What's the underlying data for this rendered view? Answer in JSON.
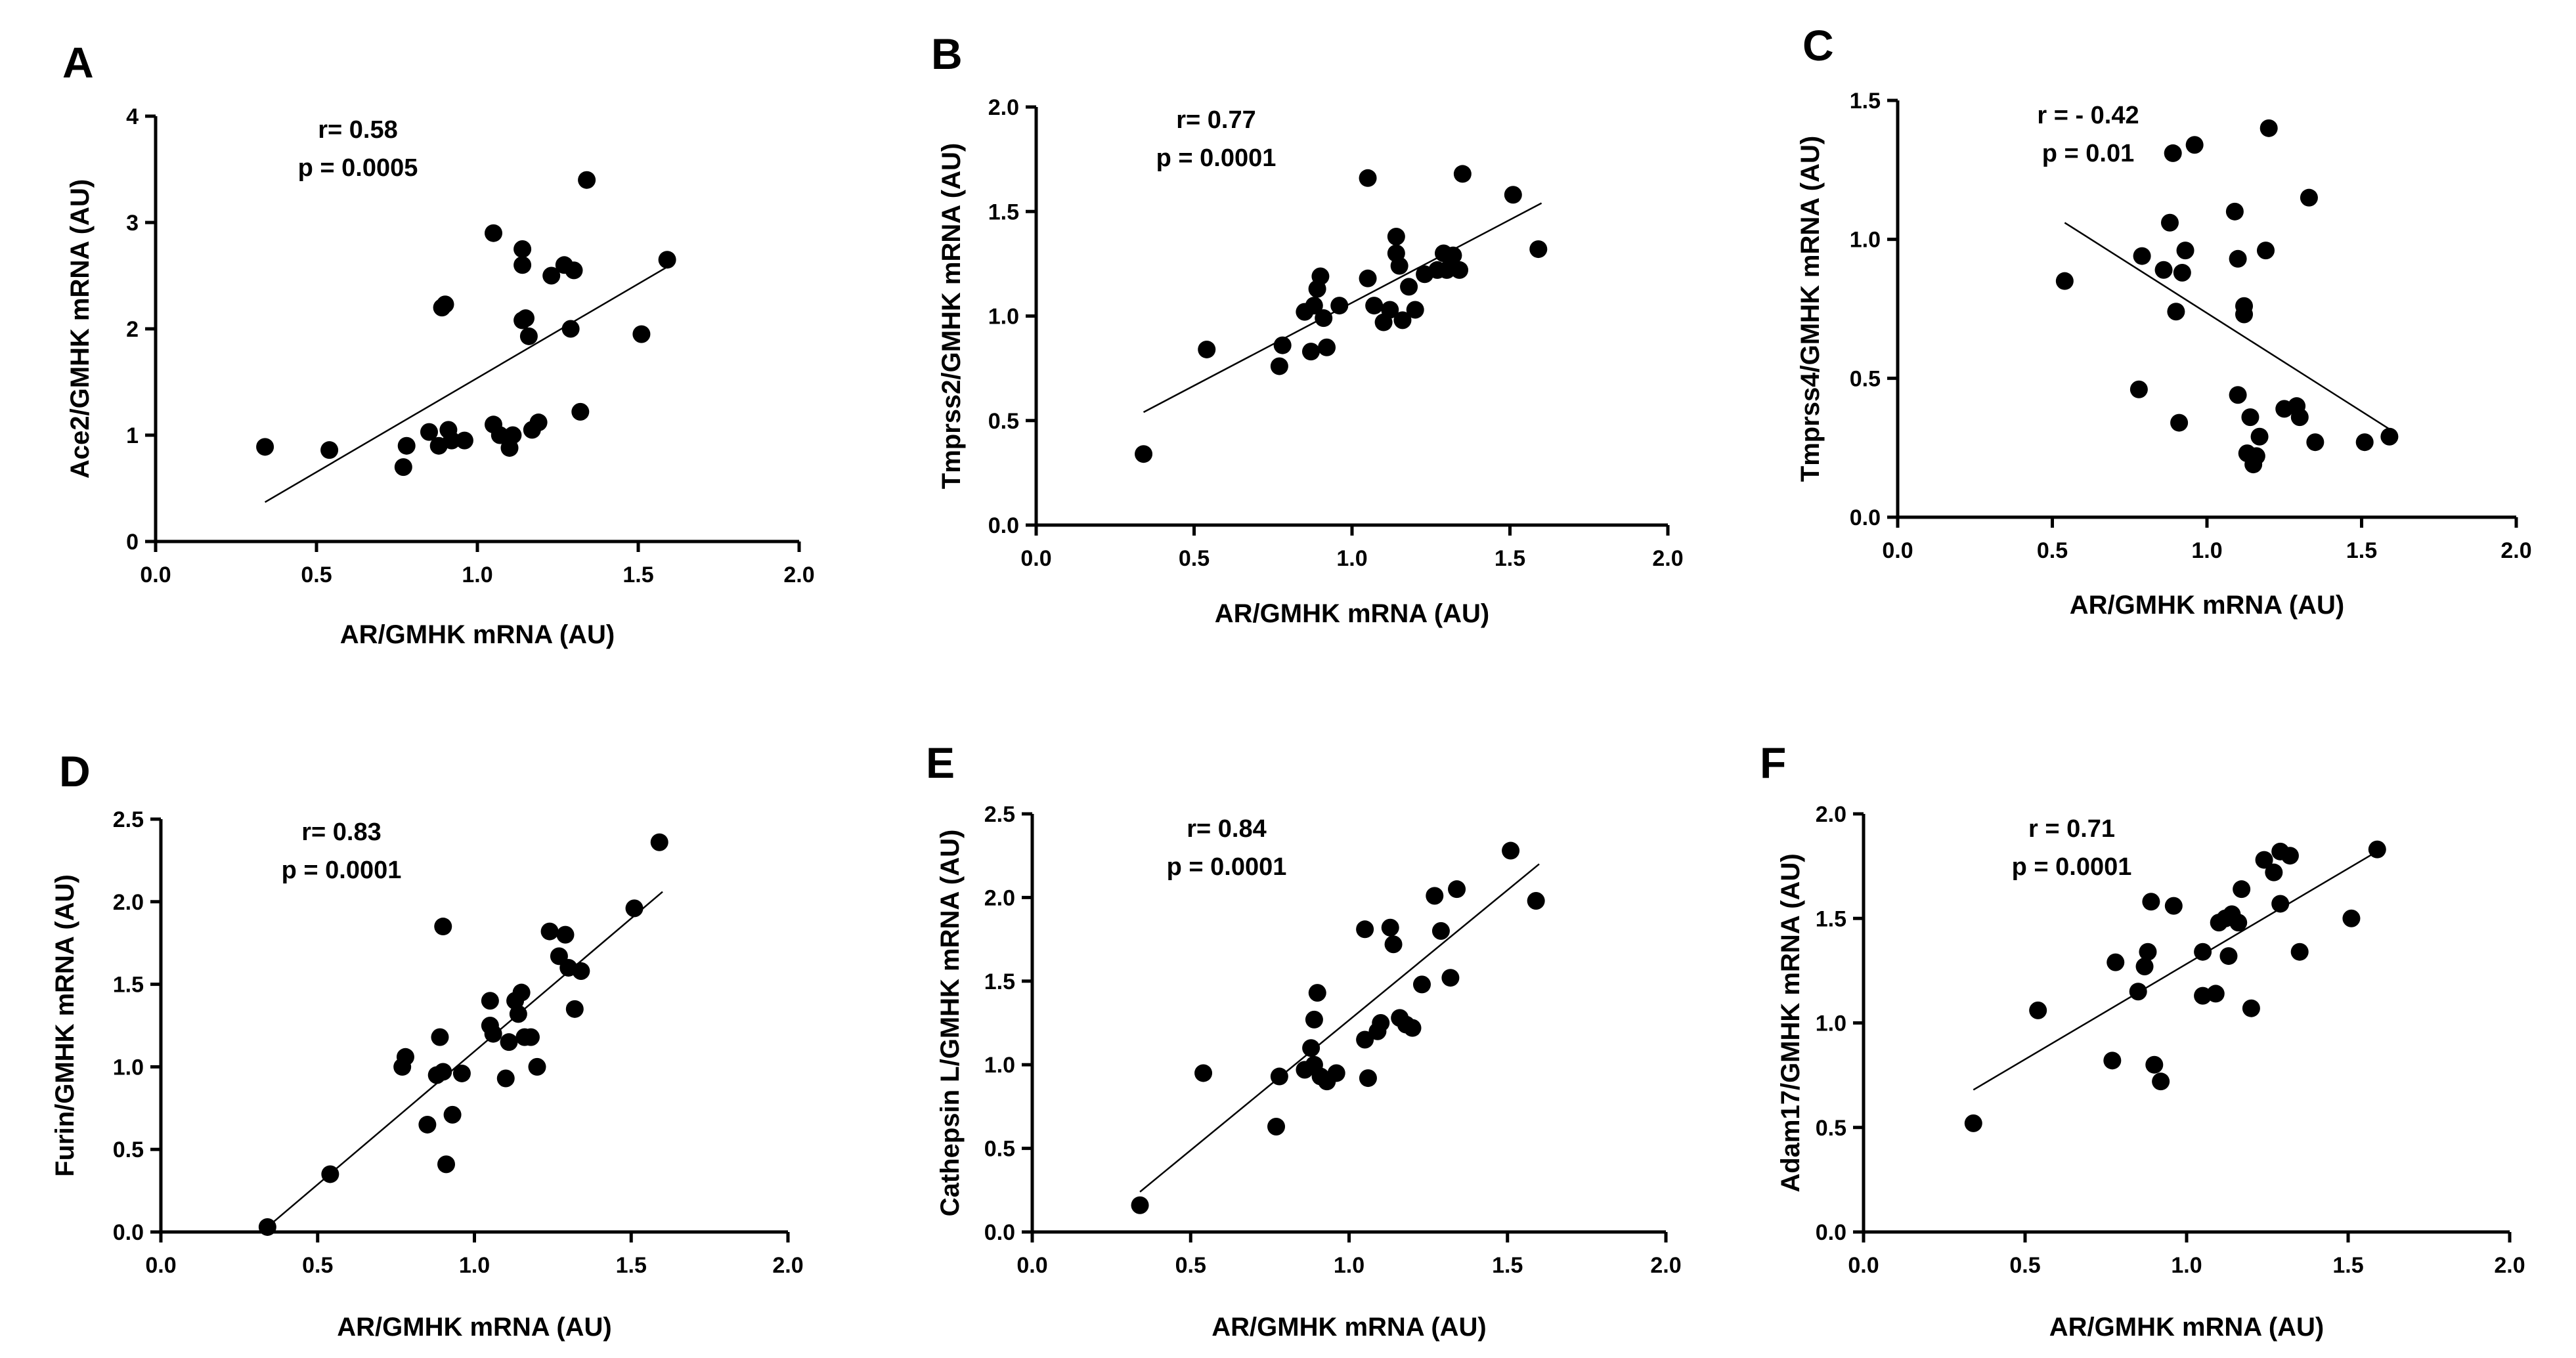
{
  "chart_data": [
    {
      "id": "A",
      "label": "A",
      "type": "scatter",
      "xlabel": "AR/GMHK mRNA (AU)",
      "ylabel": "Ace2/GMHK mRNA (AU)",
      "xlim": [
        0,
        2
      ],
      "ylim": [
        0,
        4
      ],
      "xticks": [
        0.0,
        0.5,
        1.0,
        1.5,
        2.0
      ],
      "xtick_labels": [
        "0.0",
        "0.5",
        "1.0",
        "1.5",
        "2.0"
      ],
      "yticks": [
        0,
        1,
        2,
        3,
        4
      ],
      "ytick_labels": [
        "0",
        "1",
        "2",
        "3",
        "4"
      ],
      "stats": {
        "r": "r= 0.58",
        "p": "p = 0.0005"
      },
      "fit": {
        "x": [
          0.34,
          1.6
        ],
        "y": [
          0.37,
          2.6
        ]
      },
      "points": [
        {
          "x": 0.34,
          "y": 0.89
        },
        {
          "x": 0.54,
          "y": 0.86
        },
        {
          "x": 0.77,
          "y": 0.7
        },
        {
          "x": 0.78,
          "y": 0.9
        },
        {
          "x": 0.85,
          "y": 1.03
        },
        {
          "x": 0.88,
          "y": 0.9
        },
        {
          "x": 0.89,
          "y": 2.2
        },
        {
          "x": 0.9,
          "y": 2.23
        },
        {
          "x": 0.91,
          "y": 1.05
        },
        {
          "x": 0.92,
          "y": 0.95
        },
        {
          "x": 0.96,
          "y": 0.95
        },
        {
          "x": 1.05,
          "y": 2.9
        },
        {
          "x": 1.05,
          "y": 1.1
        },
        {
          "x": 1.07,
          "y": 1.0
        },
        {
          "x": 1.1,
          "y": 0.88
        },
        {
          "x": 1.11,
          "y": 1.0
        },
        {
          "x": 1.14,
          "y": 2.75
        },
        {
          "x": 1.14,
          "y": 2.6
        },
        {
          "x": 1.14,
          "y": 2.08
        },
        {
          "x": 1.15,
          "y": 2.1
        },
        {
          "x": 1.16,
          "y": 1.93
        },
        {
          "x": 1.17,
          "y": 1.05
        },
        {
          "x": 1.19,
          "y": 1.12
        },
        {
          "x": 1.23,
          "y": 2.5
        },
        {
          "x": 1.27,
          "y": 2.6
        },
        {
          "x": 1.29,
          "y": 2.0
        },
        {
          "x": 1.3,
          "y": 2.55
        },
        {
          "x": 1.32,
          "y": 1.22
        },
        {
          "x": 1.34,
          "y": 3.4
        },
        {
          "x": 1.51,
          "y": 1.95
        },
        {
          "x": 1.59,
          "y": 2.65
        }
      ]
    },
    {
      "id": "B",
      "label": "B",
      "type": "scatter",
      "xlabel": "AR/GMHK mRNA (AU)",
      "ylabel": "Tmprss2/GMHK mRNA (AU)",
      "xlim": [
        0,
        2
      ],
      "ylim": [
        0,
        2
      ],
      "xticks": [
        0.0,
        0.5,
        1.0,
        1.5,
        2.0
      ],
      "xtick_labels": [
        "0.0",
        "0.5",
        "1.0",
        "1.5",
        "2.0"
      ],
      "yticks": [
        0.0,
        0.5,
        1.0,
        1.5,
        2.0
      ],
      "ytick_labels": [
        "0.0",
        "0.5",
        "1.0",
        "1.5",
        "2.0"
      ],
      "stats": {
        "r": "r= 0.77",
        "p": "p = 0.0001"
      },
      "fit": {
        "x": [
          0.34,
          1.6
        ],
        "y": [
          0.54,
          1.54
        ]
      },
      "points": [
        {
          "x": 0.34,
          "y": 0.34
        },
        {
          "x": 0.54,
          "y": 0.84
        },
        {
          "x": 0.77,
          "y": 0.76
        },
        {
          "x": 0.78,
          "y": 0.86
        },
        {
          "x": 0.85,
          "y": 1.02
        },
        {
          "x": 0.87,
          "y": 0.83
        },
        {
          "x": 0.88,
          "y": 1.05
        },
        {
          "x": 0.89,
          "y": 1.13
        },
        {
          "x": 0.9,
          "y": 1.19
        },
        {
          "x": 0.91,
          "y": 0.99
        },
        {
          "x": 0.92,
          "y": 0.85
        },
        {
          "x": 0.96,
          "y": 1.05
        },
        {
          "x": 1.05,
          "y": 1.66
        },
        {
          "x": 1.05,
          "y": 1.18
        },
        {
          "x": 1.07,
          "y": 1.05
        },
        {
          "x": 1.1,
          "y": 0.97
        },
        {
          "x": 1.12,
          "y": 1.03
        },
        {
          "x": 1.14,
          "y": 1.38
        },
        {
          "x": 1.14,
          "y": 1.3
        },
        {
          "x": 1.15,
          "y": 1.24
        },
        {
          "x": 1.16,
          "y": 0.98
        },
        {
          "x": 1.18,
          "y": 1.14
        },
        {
          "x": 1.2,
          "y": 1.03
        },
        {
          "x": 1.23,
          "y": 1.2
        },
        {
          "x": 1.27,
          "y": 1.22
        },
        {
          "x": 1.29,
          "y": 1.3
        },
        {
          "x": 1.3,
          "y": 1.22
        },
        {
          "x": 1.32,
          "y": 1.29
        },
        {
          "x": 1.34,
          "y": 1.22
        },
        {
          "x": 1.35,
          "y": 1.68
        },
        {
          "x": 1.51,
          "y": 1.58
        },
        {
          "x": 1.59,
          "y": 1.32
        }
      ]
    },
    {
      "id": "C",
      "label": "C",
      "type": "scatter",
      "xlabel": "AR/GMHK mRNA (AU)",
      "ylabel": "Tmprss4/GMHK mRNA (AU)",
      "xlim": [
        0,
        2
      ],
      "ylim": [
        0,
        1.5
      ],
      "xticks": [
        0.0,
        0.5,
        1.0,
        1.5,
        2.0
      ],
      "xtick_labels": [
        "0.0",
        "0.5",
        "1.0",
        "1.5",
        "2.0"
      ],
      "yticks": [
        0.0,
        0.5,
        1.0,
        1.5
      ],
      "ytick_labels": [
        "0.0",
        "0.5",
        "1.0",
        "1.5"
      ],
      "stats": {
        "r": "r = - 0.42",
        "p": "p = 0.01"
      },
      "fit": {
        "x": [
          0.54,
          1.6
        ],
        "y": [
          1.06,
          0.31
        ]
      },
      "points": [
        {
          "x": 0.54,
          "y": 0.85
        },
        {
          "x": 0.78,
          "y": 0.46
        },
        {
          "x": 0.79,
          "y": 0.94
        },
        {
          "x": 0.86,
          "y": 0.89
        },
        {
          "x": 0.88,
          "y": 1.06
        },
        {
          "x": 0.89,
          "y": 1.31
        },
        {
          "x": 0.9,
          "y": 0.74
        },
        {
          "x": 0.91,
          "y": 0.34
        },
        {
          "x": 0.92,
          "y": 0.88
        },
        {
          "x": 0.93,
          "y": 0.96
        },
        {
          "x": 0.96,
          "y": 1.34
        },
        {
          "x": 1.09,
          "y": 1.1
        },
        {
          "x": 1.1,
          "y": 0.93
        },
        {
          "x": 1.1,
          "y": 0.44
        },
        {
          "x": 1.12,
          "y": 0.76
        },
        {
          "x": 1.12,
          "y": 0.73
        },
        {
          "x": 1.13,
          "y": 0.23
        },
        {
          "x": 1.14,
          "y": 0.36
        },
        {
          "x": 1.15,
          "y": 0.19
        },
        {
          "x": 1.16,
          "y": 0.22
        },
        {
          "x": 1.17,
          "y": 0.29
        },
        {
          "x": 1.19,
          "y": 0.96
        },
        {
          "x": 1.2,
          "y": 1.4
        },
        {
          "x": 1.25,
          "y": 0.39
        },
        {
          "x": 1.29,
          "y": 0.4
        },
        {
          "x": 1.3,
          "y": 0.36
        },
        {
          "x": 1.33,
          "y": 1.15
        },
        {
          "x": 1.35,
          "y": 0.27
        },
        {
          "x": 1.51,
          "y": 0.27
        },
        {
          "x": 1.59,
          "y": 0.29
        }
      ]
    },
    {
      "id": "D",
      "label": "D",
      "type": "scatter",
      "xlabel": "AR/GMHK mRNA (AU)",
      "ylabel": "Furin/GMHK mRNA (AU)",
      "xlim": [
        0,
        2
      ],
      "ylim": [
        0,
        2.5
      ],
      "xticks": [
        0.0,
        0.5,
        1.0,
        1.5,
        2.0
      ],
      "xtick_labels": [
        "0.0",
        "0.5",
        "1.0",
        "1.5",
        "2.0"
      ],
      "yticks": [
        0.0,
        0.5,
        1.0,
        1.5,
        2.0,
        2.5
      ],
      "ytick_labels": [
        "0.0",
        "0.5",
        "1.0",
        "1.5",
        "2.0",
        "2.5"
      ],
      "stats": {
        "r": "r= 0.83",
        "p": "p = 0.0001"
      },
      "fit": {
        "x": [
          0.34,
          1.6
        ],
        "y": [
          0.03,
          2.06
        ]
      },
      "points": [
        {
          "x": 0.34,
          "y": 0.03
        },
        {
          "x": 0.54,
          "y": 0.35
        },
        {
          "x": 0.77,
          "y": 1.0
        },
        {
          "x": 0.78,
          "y": 1.06
        },
        {
          "x": 0.85,
          "y": 0.65
        },
        {
          "x": 0.88,
          "y": 0.95
        },
        {
          "x": 0.89,
          "y": 1.18
        },
        {
          "x": 0.9,
          "y": 1.85
        },
        {
          "x": 0.9,
          "y": 0.97
        },
        {
          "x": 0.91,
          "y": 0.41
        },
        {
          "x": 0.93,
          "y": 0.71
        },
        {
          "x": 0.96,
          "y": 0.96
        },
        {
          "x": 1.05,
          "y": 1.4
        },
        {
          "x": 1.05,
          "y": 1.25
        },
        {
          "x": 1.06,
          "y": 1.2
        },
        {
          "x": 1.1,
          "y": 0.93
        },
        {
          "x": 1.11,
          "y": 1.15
        },
        {
          "x": 1.13,
          "y": 1.4
        },
        {
          "x": 1.14,
          "y": 1.32
        },
        {
          "x": 1.15,
          "y": 1.45
        },
        {
          "x": 1.16,
          "y": 1.18
        },
        {
          "x": 1.18,
          "y": 1.18
        },
        {
          "x": 1.2,
          "y": 1.0
        },
        {
          "x": 1.24,
          "y": 1.82
        },
        {
          "x": 1.27,
          "y": 1.67
        },
        {
          "x": 1.29,
          "y": 1.8
        },
        {
          "x": 1.3,
          "y": 1.6
        },
        {
          "x": 1.32,
          "y": 1.35
        },
        {
          "x": 1.34,
          "y": 1.58
        },
        {
          "x": 1.51,
          "y": 1.96
        },
        {
          "x": 1.59,
          "y": 2.36
        }
      ]
    },
    {
      "id": "E",
      "label": "E",
      "type": "scatter",
      "xlabel": "AR/GMHK mRNA (AU)",
      "ylabel": "Cathepsin L/GMHK mRNA (AU)",
      "xlim": [
        0,
        2
      ],
      "ylim": [
        0,
        2.5
      ],
      "xticks": [
        0.0,
        0.5,
        1.0,
        1.5,
        2.0
      ],
      "xtick_labels": [
        "0.0",
        "0.5",
        "1.0",
        "1.5",
        "2.0"
      ],
      "yticks": [
        0.0,
        0.5,
        1.0,
        1.5,
        2.0,
        2.5
      ],
      "ytick_labels": [
        "0.0",
        "0.5",
        "1.0",
        "1.5",
        "2.0",
        "2.5"
      ],
      "stats": {
        "r": "r= 0.84",
        "p": "p = 0.0001"
      },
      "fit": {
        "x": [
          0.34,
          1.6
        ],
        "y": [
          0.24,
          2.2
        ]
      },
      "points": [
        {
          "x": 0.34,
          "y": 0.16
        },
        {
          "x": 0.54,
          "y": 0.95
        },
        {
          "x": 0.77,
          "y": 0.63
        },
        {
          "x": 0.78,
          "y": 0.93
        },
        {
          "x": 0.86,
          "y": 0.97
        },
        {
          "x": 0.88,
          "y": 1.1
        },
        {
          "x": 0.89,
          "y": 1.0
        },
        {
          "x": 0.89,
          "y": 1.27
        },
        {
          "x": 0.9,
          "y": 1.43
        },
        {
          "x": 0.91,
          "y": 0.93
        },
        {
          "x": 0.93,
          "y": 0.9
        },
        {
          "x": 0.96,
          "y": 0.95
        },
        {
          "x": 1.05,
          "y": 1.81
        },
        {
          "x": 1.05,
          "y": 1.15
        },
        {
          "x": 1.06,
          "y": 0.92
        },
        {
          "x": 1.09,
          "y": 1.2
        },
        {
          "x": 1.1,
          "y": 1.25
        },
        {
          "x": 1.13,
          "y": 1.82
        },
        {
          "x": 1.14,
          "y": 1.72
        },
        {
          "x": 1.16,
          "y": 1.28
        },
        {
          "x": 1.18,
          "y": 1.24
        },
        {
          "x": 1.2,
          "y": 1.22
        },
        {
          "x": 1.23,
          "y": 1.48
        },
        {
          "x": 1.27,
          "y": 2.01
        },
        {
          "x": 1.29,
          "y": 1.8
        },
        {
          "x": 1.32,
          "y": 1.52
        },
        {
          "x": 1.34,
          "y": 2.05
        },
        {
          "x": 1.51,
          "y": 2.28
        },
        {
          "x": 1.59,
          "y": 1.98
        }
      ]
    },
    {
      "id": "F",
      "label": "F",
      "type": "scatter",
      "xlabel": "AR/GMHK mRNA (AU)",
      "ylabel": "Adam17/GMHK mRNA (AU)",
      "xlim": [
        0,
        2
      ],
      "ylim": [
        0,
        2
      ],
      "xticks": [
        0.0,
        0.5,
        1.0,
        1.5,
        2.0
      ],
      "xtick_labels": [
        "0.0",
        "0.5",
        "1.0",
        "1.5",
        "2.0"
      ],
      "yticks": [
        0.0,
        0.5,
        1.0,
        1.5,
        2.0
      ],
      "ytick_labels": [
        "0.0",
        "0.5",
        "1.0",
        "1.5",
        "2.0"
      ],
      "stats": {
        "r": "r = 0.71",
        "p": "p = 0.0001"
      },
      "fit": {
        "x": [
          0.34,
          1.6
        ],
        "y": [
          0.68,
          1.83
        ]
      },
      "points": [
        {
          "x": 0.34,
          "y": 0.52
        },
        {
          "x": 0.54,
          "y": 1.06
        },
        {
          "x": 0.77,
          "y": 0.82
        },
        {
          "x": 0.78,
          "y": 1.29
        },
        {
          "x": 0.85,
          "y": 1.15
        },
        {
          "x": 0.87,
          "y": 1.27
        },
        {
          "x": 0.88,
          "y": 1.34
        },
        {
          "x": 0.89,
          "y": 1.58
        },
        {
          "x": 0.9,
          "y": 0.8
        },
        {
          "x": 0.92,
          "y": 0.72
        },
        {
          "x": 0.96,
          "y": 1.56
        },
        {
          "x": 1.05,
          "y": 1.13
        },
        {
          "x": 1.05,
          "y": 1.34
        },
        {
          "x": 1.09,
          "y": 1.14
        },
        {
          "x": 1.1,
          "y": 1.48
        },
        {
          "x": 1.12,
          "y": 1.5
        },
        {
          "x": 1.13,
          "y": 1.32
        },
        {
          "x": 1.14,
          "y": 1.52
        },
        {
          "x": 1.16,
          "y": 1.48
        },
        {
          "x": 1.17,
          "y": 1.64
        },
        {
          "x": 1.2,
          "y": 1.07
        },
        {
          "x": 1.24,
          "y": 1.78
        },
        {
          "x": 1.27,
          "y": 1.72
        },
        {
          "x": 1.29,
          "y": 1.57
        },
        {
          "x": 1.29,
          "y": 1.82
        },
        {
          "x": 1.32,
          "y": 1.8
        },
        {
          "x": 1.35,
          "y": 1.34
        },
        {
          "x": 1.51,
          "y": 1.5
        },
        {
          "x": 1.59,
          "y": 1.83
        }
      ]
    }
  ]
}
